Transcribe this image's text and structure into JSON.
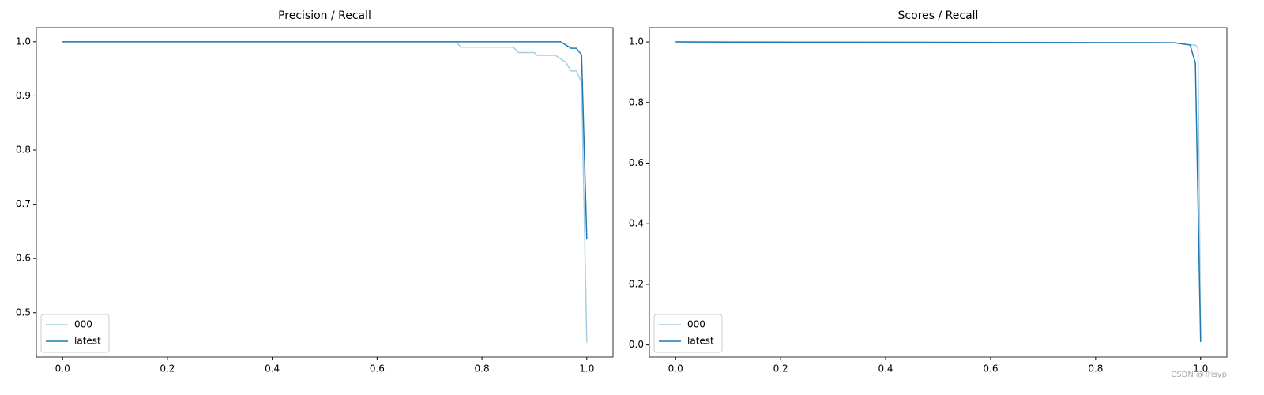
{
  "chart_data": [
    {
      "type": "line",
      "title": "Precision / Recall",
      "xlim": [
        -0.05,
        1.05
      ],
      "ylim": [
        0.418,
        1.026
      ],
      "xticks": [
        {
          "value": 0,
          "label": "0.0"
        },
        0.2,
        0.4,
        0.6,
        0.8,
        {
          "value": 1,
          "label": "1.0"
        }
      ],
      "yticks": [
        0.5,
        0.6,
        0.7,
        0.8,
        0.9,
        {
          "value": 1,
          "label": "1.0"
        }
      ],
      "grid": false,
      "legend": "lower left",
      "series": [
        {
          "name": "000",
          "color": "#a6cee3",
          "x": [
            0,
            0.75,
            0.76,
            0.86,
            0.87,
            0.9,
            0.905,
            0.94,
            0.96,
            0.97,
            0.98,
            0.99,
            1.0
          ],
          "values": [
            1.0,
            1.0,
            0.99,
            0.99,
            0.98,
            0.98,
            0.975,
            0.975,
            0.962,
            0.946,
            0.946,
            0.925,
            0.445
          ]
        },
        {
          "name": "latest",
          "color": "#1f78b4",
          "x": [
            0,
            0.95,
            0.97,
            0.98,
            0.99,
            1.0
          ],
          "values": [
            1.0,
            1.0,
            0.988,
            0.988,
            0.976,
            0.635
          ]
        }
      ]
    },
    {
      "type": "line",
      "title": "Scores / Recall",
      "xlim": [
        -0.05,
        1.05
      ],
      "ylim": [
        -0.04,
        1.047
      ],
      "xticks": [
        {
          "value": 0,
          "label": "0.0"
        },
        0.2,
        0.4,
        0.6,
        0.8,
        {
          "value": 1,
          "label": "1.0"
        }
      ],
      "yticks": [
        {
          "value": 0,
          "label": "0.0"
        },
        0.2,
        0.4,
        0.6,
        0.8,
        {
          "value": 1,
          "label": "1.0"
        }
      ],
      "grid": false,
      "legend": "lower left",
      "series": [
        {
          "name": "000",
          "color": "#a6cee3",
          "x": [
            0,
            0.9,
            0.95,
            0.98,
            0.99,
            0.995,
            1.0
          ],
          "values": [
            1.0,
            0.998,
            0.997,
            0.99,
            0.99,
            0.98,
            0.01
          ]
        },
        {
          "name": "latest",
          "color": "#1f78b4",
          "x": [
            0,
            0.95,
            0.98,
            0.99,
            1.0
          ],
          "values": [
            1.0,
            0.997,
            0.99,
            0.93,
            0.01
          ]
        }
      ]
    }
  ],
  "watermark": "CSDN @Trisyp"
}
